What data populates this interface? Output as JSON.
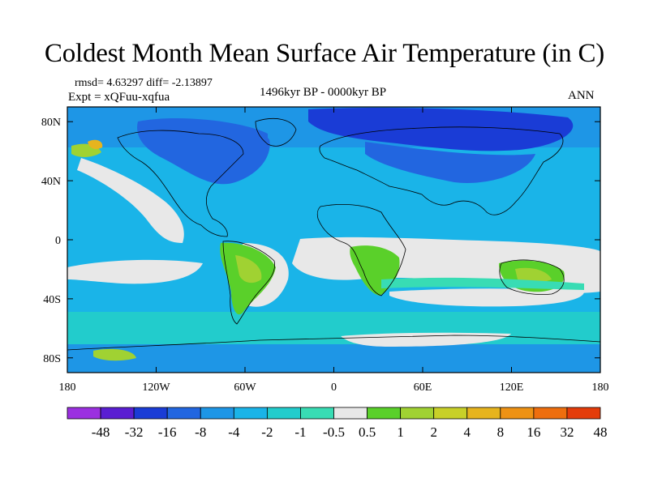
{
  "title": "Coldest Month Mean Surface Air Temperature (in C)",
  "stats_line": "rmsd= 4.63297  diff= -2.13897",
  "rmsd": 4.63297,
  "diff": -2.13897,
  "experiment": "Expt = xQFuu-xqfua",
  "period": "1496kyr BP - 0000kyr BP",
  "season": "ANN",
  "axes": {
    "lon_range": [
      -180,
      180
    ],
    "lat_range": [
      -90,
      90
    ],
    "lon_ticks": [
      {
        "value": -180,
        "label": "180"
      },
      {
        "value": -120,
        "label": "120W"
      },
      {
        "value": -60,
        "label": "60W"
      },
      {
        "value": 0,
        "label": "0"
      },
      {
        "value": 60,
        "label": "60E"
      },
      {
        "value": 120,
        "label": "120E"
      },
      {
        "value": 180,
        "label": "180"
      }
    ],
    "lat_ticks": [
      {
        "value": 80,
        "label": "80N"
      },
      {
        "value": 40,
        "label": "40N"
      },
      {
        "value": 0,
        "label": "0"
      },
      {
        "value": -40,
        "label": "40S"
      },
      {
        "value": -80,
        "label": "80S"
      }
    ]
  },
  "colorbar": {
    "colors": [
      "#9b30e0",
      "#5a1ed2",
      "#1a3cd6",
      "#2266e0",
      "#1e96e6",
      "#1ab4e8",
      "#22cccc",
      "#38dcb4",
      "#e8e8e8",
      "#5ad02a",
      "#a0d232",
      "#c8d028",
      "#e6b41e",
      "#ee9214",
      "#ee6e0e",
      "#e43c0a"
    ],
    "labels": [
      "-48",
      "-32",
      "-16",
      "-8",
      "-4",
      "-2",
      "-1",
      "-0.5",
      "0.5",
      "1",
      "2",
      "4",
      "8",
      "16",
      "32",
      "48"
    ]
  },
  "map_colors": {
    "ocean_base": "#1ab4e8",
    "near_zero": "#e8e8e8",
    "mild_warm": "#5ad02a",
    "warm": "#a0d232",
    "warmer": "#c8d028",
    "cool": "#1e96e6",
    "cold": "#2266e0",
    "colder": "#1a3cd6",
    "coolish": "#22cccc",
    "slight_cool": "#38dcb4",
    "orange": "#e6b41e"
  }
}
